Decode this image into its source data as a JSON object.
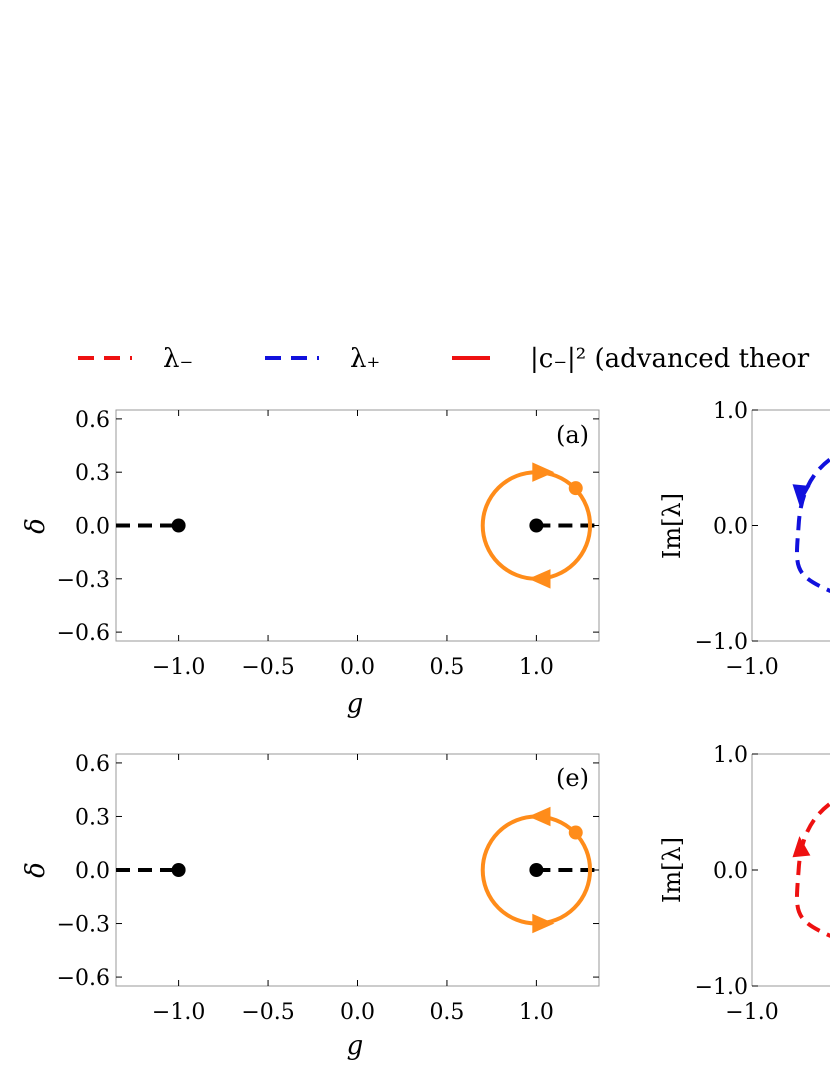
{
  "legend": [
    {
      "label": "λ₋",
      "color": "#ee1111",
      "style": "dashed"
    },
    {
      "label": "λ₊",
      "color": "#1111dd",
      "style": "dashed"
    },
    {
      "label": "|c₋|² (advanced theor",
      "color": "#ee1111",
      "style": "solid"
    }
  ],
  "colors": {
    "loop": "#ff8c1a",
    "ep_line": "#000000",
    "endpoint_marker": "#ee1111",
    "lambda_minus": "#ee1111",
    "lambda_plus": "#1111dd"
  },
  "chart_data": [
    {
      "id": "a",
      "type": "line",
      "panel_label": "(a)",
      "xlabel": "g",
      "ylabel": "δ",
      "xlim": [
        -1.35,
        1.35
      ],
      "ylim": [
        -0.65,
        0.65
      ],
      "xticks": [
        -1.0,
        -0.5,
        0.0,
        0.5,
        1.0
      ],
      "xtick_labels": [
        "−1.0",
        "−0.5",
        "0.0",
        "0.5",
        "1.0"
      ],
      "yticks": [
        0.6,
        0.3,
        0.0,
        -0.3,
        -0.6
      ],
      "ytick_labels": [
        "0.6",
        "0.3",
        "0.0",
        "−0.3",
        "−0.6"
      ],
      "exceptional_points": [
        {
          "g": -1.0,
          "delta": 0.0
        },
        {
          "g": 1.0,
          "delta": 0.0
        }
      ],
      "branch_cuts": [
        {
          "from": -1.35,
          "to": -1.0
        },
        {
          "from": 1.0,
          "to": 1.35
        }
      ],
      "loop": {
        "center": [
          1.0,
          0.0
        ],
        "radius_g": 0.3,
        "radius_delta": 0.3,
        "start_point": [
          1.22,
          0.21
        ],
        "direction": "clockwise"
      }
    },
    {
      "id": "b",
      "type": "line",
      "xlabel": "",
      "ylabel": "Im[λ]",
      "xlim": [
        -1.0,
        1.0
      ],
      "ylim": [
        -1.0,
        1.0
      ],
      "xtick_labels": [
        "−1.0"
      ],
      "yticks": [
        1.0,
        0.0,
        -1.0
      ],
      "ytick_labels": [
        "1.0",
        "0.0",
        "−1.0"
      ],
      "series": [
        {
          "name": "λ₊",
          "color": "#1111dd",
          "start": [
            -0.42,
            -0.74
          ],
          "through": [
            -0.79,
            0.0
          ],
          "end": [
            -0.42,
            0.79
          ],
          "direction": "upward-to-downward arrow near top-left"
        }
      ]
    },
    {
      "id": "e",
      "type": "line",
      "panel_label": "(e)",
      "xlabel": "g",
      "ylabel": "δ",
      "xlim": [
        -1.35,
        1.35
      ],
      "ylim": [
        -0.65,
        0.65
      ],
      "xticks": [
        -1.0,
        -0.5,
        0.0,
        0.5,
        1.0
      ],
      "xtick_labels": [
        "−1.0",
        "−0.5",
        "0.0",
        "0.5",
        "1.0"
      ],
      "yticks": [
        0.6,
        0.3,
        0.0,
        -0.3,
        -0.6
      ],
      "ytick_labels": [
        "0.6",
        "0.3",
        "0.0",
        "−0.3",
        "−0.6"
      ],
      "exceptional_points": [
        {
          "g": -1.0,
          "delta": 0.0
        },
        {
          "g": 1.0,
          "delta": 0.0
        }
      ],
      "branch_cuts": [
        {
          "from": -1.35,
          "to": -1.0
        },
        {
          "from": 1.0,
          "to": 1.35
        }
      ],
      "loop": {
        "center": [
          1.0,
          0.0
        ],
        "radius_g": 0.3,
        "radius_delta": 0.3,
        "start_point": [
          1.22,
          0.21
        ],
        "direction": "counterclockwise"
      }
    },
    {
      "id": "f",
      "type": "line",
      "xlabel": "",
      "ylabel": "Im[λ]",
      "xlim": [
        -1.0,
        1.0
      ],
      "ylim": [
        -1.0,
        1.0
      ],
      "xtick_labels": [
        "−1.0"
      ],
      "yticks": [
        1.0,
        0.0,
        -1.0
      ],
      "ytick_labels": [
        "1.0",
        "0.0",
        "−1.0"
      ],
      "series": [
        {
          "name": "λ₋",
          "color": "#ee1111",
          "start": [
            -0.42,
            -0.74
          ],
          "through": [
            -0.79,
            0.0
          ],
          "end": [
            -0.42,
            0.79
          ],
          "direction": "upward"
        }
      ]
    }
  ]
}
